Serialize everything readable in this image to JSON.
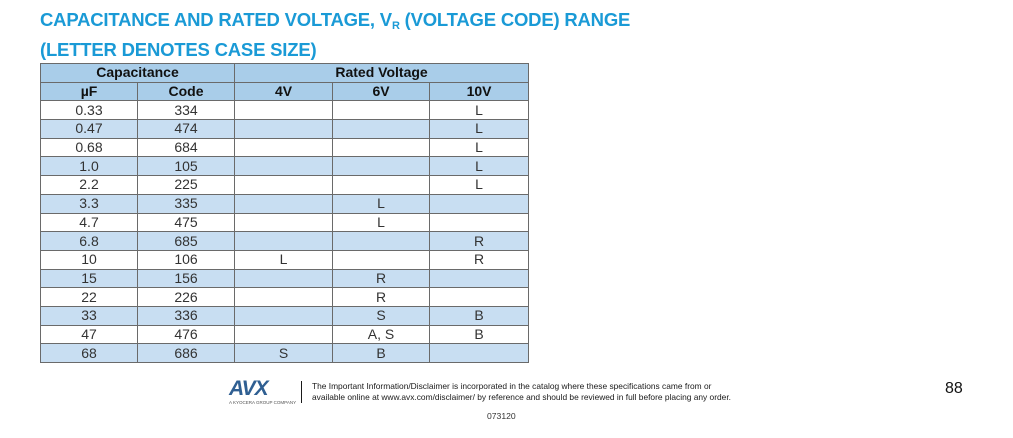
{
  "title": {
    "line1_prefix": "CAPACITANCE AND RATED VOLTAGE, V",
    "line1_sub": "R",
    "line1_suffix": " (VOLTAGE CODE) RANGE",
    "line2": "(LETTER DENOTES CASE SIZE)"
  },
  "table": {
    "group_headers": [
      "Capacitance",
      "Rated Voltage"
    ],
    "columns": [
      "µF",
      "Code",
      "4V",
      "6V",
      "10V"
    ],
    "rows": [
      {
        "uf": "0.33",
        "code": "334",
        "v4": "",
        "v6": "",
        "v10": "L"
      },
      {
        "uf": "0.47",
        "code": "474",
        "v4": "",
        "v6": "",
        "v10": "L"
      },
      {
        "uf": "0.68",
        "code": "684",
        "v4": "",
        "v6": "",
        "v10": "L"
      },
      {
        "uf": "1.0",
        "code": "105",
        "v4": "",
        "v6": "",
        "v10": "L"
      },
      {
        "uf": "2.2",
        "code": "225",
        "v4": "",
        "v6": "",
        "v10": "L"
      },
      {
        "uf": "3.3",
        "code": "335",
        "v4": "",
        "v6": "L",
        "v10": ""
      },
      {
        "uf": "4.7",
        "code": "475",
        "v4": "",
        "v6": "L",
        "v10": ""
      },
      {
        "uf": "6.8",
        "code": "685",
        "v4": "",
        "v6": "",
        "v10": "R"
      },
      {
        "uf": "10",
        "code": "106",
        "v4": "L",
        "v6": "",
        "v10": "R"
      },
      {
        "uf": "15",
        "code": "156",
        "v4": "",
        "v6": "R",
        "v10": ""
      },
      {
        "uf": "22",
        "code": "226",
        "v4": "",
        "v6": "R",
        "v10": ""
      },
      {
        "uf": "33",
        "code": "336",
        "v4": "",
        "v6": "S",
        "v10": "B"
      },
      {
        "uf": "47",
        "code": "476",
        "v4": "",
        "v6": "A, S",
        "v10": "B"
      },
      {
        "uf": "68",
        "code": "686",
        "v4": "S",
        "v6": "B",
        "v10": ""
      }
    ]
  },
  "footer": {
    "logo": "AVX",
    "logo_tagline": "A KYOCERA GROUP COMPANY",
    "disclaimer_line1": "The Important Information/Disclaimer is incorporated in the catalog where these specifications came from or",
    "disclaimer_line2": "available online at www.avx.com/disclaimer/ by reference and should be reviewed in full before placing any order.",
    "doc_code": "073120",
    "page_number": "88"
  },
  "colors": {
    "title": "#1a9ad6",
    "header_fill": "#a9cde9",
    "row_shade": "#c8def2",
    "logo": "#2f5f92"
  }
}
